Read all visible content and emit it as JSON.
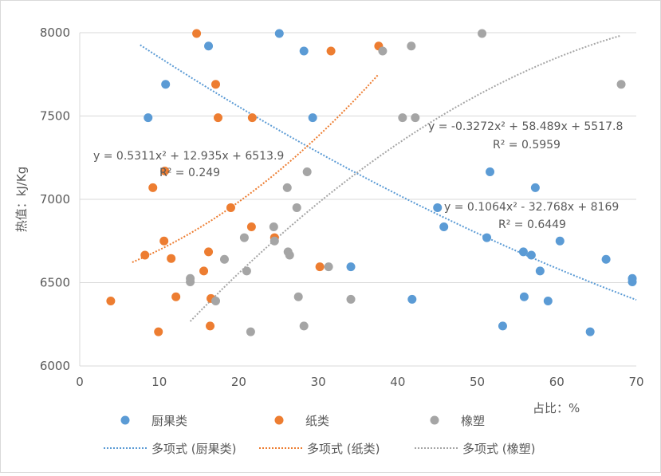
{
  "chart_data": {
    "type": "scatter",
    "xlabel": "占比：%",
    "ylabel": "热值：kJ/Kg",
    "xlim": [
      0,
      70
    ],
    "ylim": [
      6000,
      8000
    ],
    "xticks": [
      0,
      10,
      20,
      30,
      40,
      50,
      60,
      70
    ],
    "yticks": [
      6000,
      6500,
      7000,
      7500,
      8000
    ],
    "grid": "horizontal",
    "legend_position": "bottom",
    "series": [
      {
        "name": "厨果类",
        "color": "#5B9BD5",
        "points": [
          [
            8.6,
            7490
          ],
          [
            10.8,
            7690
          ],
          [
            16.2,
            7920
          ],
          [
            25.1,
            7995
          ],
          [
            28.2,
            7890
          ],
          [
            29.3,
            7490
          ],
          [
            45.0,
            6950
          ],
          [
            45.8,
            6835
          ],
          [
            51.6,
            7165
          ],
          [
            57.3,
            7070
          ],
          [
            51.2,
            6770
          ],
          [
            55.8,
            6685
          ],
          [
            56.8,
            6665
          ],
          [
            57.9,
            6570
          ],
          [
            60.4,
            6750
          ],
          [
            66.2,
            6640
          ],
          [
            69.5,
            6525
          ],
          [
            69.5,
            6505
          ],
          [
            53.2,
            6240
          ],
          [
            55.9,
            6415
          ],
          [
            58.9,
            6390
          ],
          [
            64.2,
            6205
          ],
          [
            41.8,
            6400
          ],
          [
            34.1,
            6595
          ]
        ],
        "trendline": {
          "name": "多项式 (厨果类)",
          "coeffs": [
            0.1064,
            -32.768,
            8169
          ],
          "xrange": [
            7.6,
            70
          ],
          "equation": "y = 0.1064x² - 32.768x + 8169",
          "r2": "R² = 0.6449"
        }
      },
      {
        "name": "纸类",
        "color": "#ED7D31",
        "points": [
          [
            14.7,
            7995
          ],
          [
            31.6,
            7890
          ],
          [
            37.6,
            7920
          ],
          [
            17.1,
            7690
          ],
          [
            17.4,
            7490
          ],
          [
            21.7,
            7490
          ],
          [
            10.7,
            7170
          ],
          [
            9.2,
            7070
          ],
          [
            19.0,
            6950
          ],
          [
            21.6,
            6835
          ],
          [
            24.5,
            6770
          ],
          [
            10.6,
            6750
          ],
          [
            8.2,
            6665
          ],
          [
            11.5,
            6645
          ],
          [
            16.2,
            6685
          ],
          [
            15.6,
            6570
          ],
          [
            30.2,
            6595
          ],
          [
            16.5,
            6405
          ],
          [
            12.1,
            6415
          ],
          [
            3.9,
            6390
          ],
          [
            9.9,
            6205
          ],
          [
            16.4,
            6240
          ]
        ],
        "trendline": {
          "name": "多项式 (纸类)",
          "coeffs": [
            0.5311,
            12.935,
            6513.9
          ],
          "xrange": [
            6.6,
            37.6
          ],
          "equation": "y = 0.5311x² + 12.935x + 6513.9",
          "r2": "R² = 0.249"
        }
      },
      {
        "name": "橡塑",
        "color": "#A5A5A5",
        "points": [
          [
            50.6,
            7995
          ],
          [
            38.1,
            7890
          ],
          [
            41.7,
            7920
          ],
          [
            68.1,
            7690
          ],
          [
            40.6,
            7490
          ],
          [
            42.2,
            7490
          ],
          [
            28.6,
            7165
          ],
          [
            26.1,
            7070
          ],
          [
            27.3,
            6950
          ],
          [
            24.4,
            6835
          ],
          [
            24.5,
            6750
          ],
          [
            20.7,
            6770
          ],
          [
            26.2,
            6685
          ],
          [
            26.4,
            6665
          ],
          [
            18.2,
            6640
          ],
          [
            21.0,
            6570
          ],
          [
            31.3,
            6595
          ],
          [
            13.9,
            6525
          ],
          [
            13.9,
            6505
          ],
          [
            17.1,
            6390
          ],
          [
            27.5,
            6415
          ],
          [
            34.1,
            6400
          ],
          [
            21.5,
            6205
          ],
          [
            28.2,
            6240
          ]
        ],
        "trendline": {
          "name": "多项式 (橡塑)",
          "coeffs": [
            -0.3272,
            58.489,
            5517.8
          ],
          "xrange": [
            13.9,
            68.1
          ],
          "equation": "y = -0.3272x² + 58.489x + 5517.8",
          "r2": "R² = 0.5959"
        }
      }
    ]
  }
}
